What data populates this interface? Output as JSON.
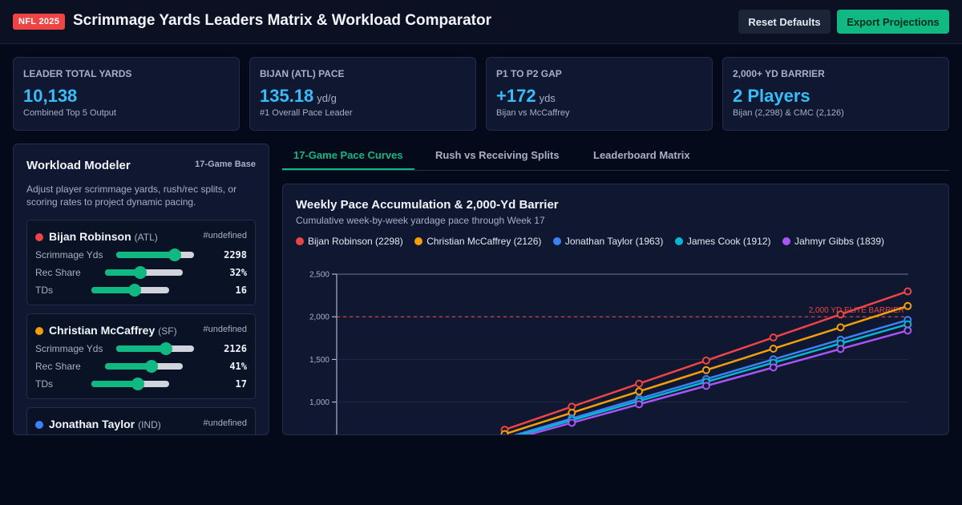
{
  "header": {
    "badge": "NFL 2025",
    "title": "Scrimmage Yards Leaders Matrix & Workload Comparator",
    "reset_label": "Reset Defaults",
    "export_label": "Export Projections"
  },
  "kpis": [
    {
      "label": "LEADER TOTAL YARDS",
      "value": "10,138",
      "unit": "",
      "sub": "Combined Top 5 Output"
    },
    {
      "label": "BIJAN (ATL) PACE",
      "value": "135.18",
      "unit": "yd/g",
      "sub": "#1 Overall Pace Leader"
    },
    {
      "label": "P1 TO P2 GAP",
      "value": "+172",
      "unit": "yds",
      "sub": "Bijan vs McCaffrey"
    },
    {
      "label": "2,000+ YD BARRIER",
      "value": "2 Players",
      "unit": "",
      "sub": "Bijan (2,298) & CMC (2,126)"
    }
  ],
  "modeler": {
    "title": "Workload Modeler",
    "tag": "17-Game Base",
    "description": "Adjust player scrimmage yards, rush/rec splits, or scoring rates to project dynamic pacing.",
    "row_labels": {
      "yds": "Scrimmage Yds",
      "rec": "Rec Share",
      "tds": "TDs"
    },
    "players": [
      {
        "name": "Bijan Robinson",
        "team": "(ATL)",
        "rank": "#undefined",
        "color": "#ef4444",
        "yds": "2298",
        "yds_level": 0.75,
        "rec": "32%",
        "rec_level": 0.45,
        "tds": "16",
        "tds_level": 0.56
      },
      {
        "name": "Christian McCaffrey",
        "team": "(SF)",
        "rank": "#undefined",
        "color": "#f59e0b",
        "yds": "2126",
        "yds_level": 0.64,
        "rec": "41%",
        "rec_level": 0.6,
        "tds": "17",
        "tds_level": 0.6
      },
      {
        "name": "Jonathan Taylor",
        "team": "(IND)",
        "rank": "#undefined",
        "color": "#3b82f6"
      }
    ]
  },
  "tabs": [
    {
      "label": "17-Game Pace Curves",
      "active": true
    },
    {
      "label": "Rush vs Receiving Splits",
      "active": false
    },
    {
      "label": "Leaderboard Matrix",
      "active": false
    }
  ],
  "chart": {
    "title": "Weekly Pace Accumulation & 2,000-Yd Barrier",
    "subtitle": "Cumulative week-by-week yardage pace through Week 17",
    "barrier_label": "2,000 YD ELITE BARRIER"
  },
  "chart_data": {
    "type": "line",
    "x": [
      5,
      6,
      7,
      8,
      9,
      10,
      11,
      12,
      13,
      14,
      15,
      16,
      17
    ],
    "yticks": [
      1000,
      1500,
      2000,
      2500
    ],
    "ylim": [
      0,
      2500
    ],
    "grid": true,
    "legend": "top-left",
    "barrier_value": 2000,
    "series": [
      {
        "name": "Bijan Robinson (2298)",
        "color": "#ef4444",
        "values": [
          676,
          811,
          946,
          1081,
          1216,
          1352,
          1487,
          1622,
          1757,
          1892,
          2028,
          2163,
          2298
        ]
      },
      {
        "name": "Christian McCaffrey (2126)",
        "color": "#f59e0b",
        "values": [
          625,
          750,
          875,
          1000,
          1125,
          1250,
          1375,
          1500,
          1626,
          1751,
          1876,
          2001,
          2126
        ]
      },
      {
        "name": "Jonathan Taylor (1963)",
        "color": "#3b82f6",
        "values": [
          577,
          693,
          808,
          924,
          1039,
          1155,
          1270,
          1385,
          1501,
          1616,
          1732,
          1847,
          1963
        ]
      },
      {
        "name": "James Cook (1912)",
        "color": "#06b6d4",
        "values": [
          562,
          675,
          787,
          900,
          1012,
          1125,
          1237,
          1350,
          1462,
          1575,
          1687,
          1800,
          1912
        ]
      },
      {
        "name": "Jahmyr Gibbs (1839)",
        "color": "#a855f7",
        "values": [
          541,
          649,
          757,
          865,
          974,
          1082,
          1190,
          1298,
          1406,
          1514,
          1623,
          1731,
          1839
        ]
      }
    ]
  }
}
